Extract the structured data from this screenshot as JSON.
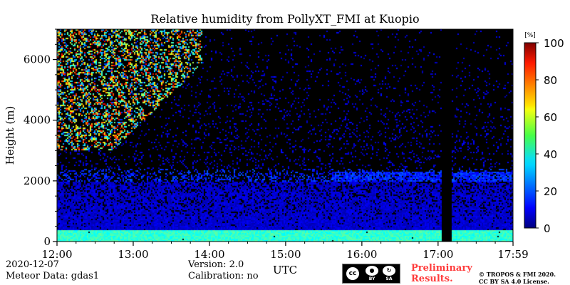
{
  "chart_data": {
    "type": "heatmap",
    "title": "Relative humidity from PollyXT_FMI at Kuopio",
    "xlabel": "UTC",
    "ylabel": "Height (m)",
    "x_ticks": [
      "12:00",
      "13:00",
      "14:00",
      "15:00",
      "16:00",
      "17:00",
      "17:59"
    ],
    "y_ticks": [
      0,
      2000,
      4000,
      6000
    ],
    "xlim_hours": [
      12.0,
      17.983
    ],
    "ylim": [
      0,
      7000
    ],
    "colorbar": {
      "label": "[%]",
      "range": [
        0,
        100
      ],
      "ticks": [
        0,
        20,
        40,
        60,
        80,
        100
      ],
      "colormap": "jet"
    },
    "background_color": "#000000",
    "no_data_interval_hours": [
      17.05,
      17.17
    ],
    "layers": [
      {
        "name": "surface_moist_layer",
        "height_range": [
          0,
          400
        ],
        "rh_percent": 42
      },
      {
        "name": "boundary_layer",
        "height_range": [
          400,
          2000
        ],
        "rh_percent": 8
      },
      {
        "name": "upper_moist_streaks",
        "time_range_hours": [
          12.0,
          13.9
        ],
        "height_range": [
          3000,
          7000
        ],
        "rh_percent": 55
      }
    ]
  },
  "footer": {
    "date": "2020-12-07",
    "meteor": "Meteor Data: gdas1",
    "version": "Version: 2.0",
    "calibration": "Calibration: no",
    "preliminary_line1": "Preliminary",
    "preliminary_line2": "Results.",
    "copyright_line1": "© TROPOS & FMI 2020.",
    "copyright_line2": "CC BY SA 4.0 License.",
    "license_badge": {
      "cc": "cc",
      "by": "BY",
      "sa": "SA"
    }
  },
  "colors": {
    "prelim": "#ff3b3b",
    "nodata": "#000000"
  }
}
